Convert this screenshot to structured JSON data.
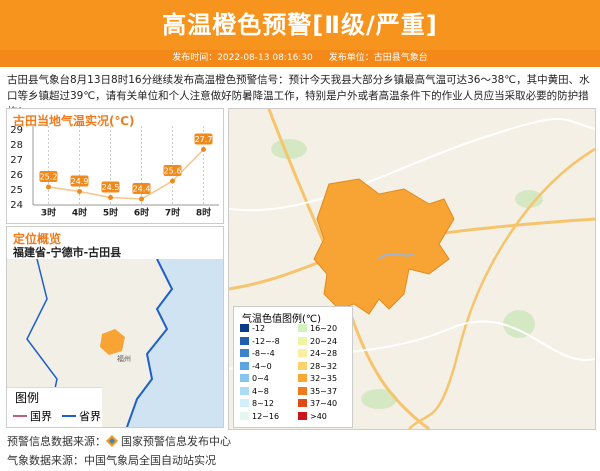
{
  "header": {
    "title": "高温橙色预警[Ⅱ级/严重]",
    "publish_time": "发布时间：2022-08-13 08:16:30",
    "publisher": "发布单位：古田县气象台"
  },
  "notice": "古田县气象台8月13日8时16分继续发布高温橙色预警信号：预计今天我县大部分乡镇最高气温可达36～38℃，其中黄田、水口等乡镇超过39℃，请有关单位和个人注意做好防暑降温工作，特别是户外或者高温条件下的作业人员应当采取必要的防护措施！",
  "chart_data": {
    "type": "line",
    "title": "古田当地气温实况(℃)",
    "categories": [
      "3时",
      "4时",
      "5时",
      "6时",
      "7时",
      "8时"
    ],
    "values": [
      25.2,
      24.9,
      24.5,
      24.4,
      25.6,
      27.7
    ],
    "color": "#f08a1c",
    "ylim": [
      24,
      29
    ],
    "yticks": [
      24,
      25,
      26,
      27,
      28,
      29
    ],
    "grid": true
  },
  "location": {
    "title": "定位概览",
    "place": "福建省-宁德市-古田县",
    "legend_title": "图例",
    "legend_items": [
      {
        "label": "国界",
        "color": "#c06080"
      },
      {
        "label": "省界",
        "color": "#1f5fc8"
      }
    ]
  },
  "map_legend": {
    "title": "气温色值图例(℃)",
    "items": [
      {
        "label": "-12",
        "color": "#0b3a88"
      },
      {
        "label": "-12~-8",
        "color": "#1f5fb0"
      },
      {
        "label": "-8~-4",
        "color": "#3c82cc"
      },
      {
        "label": "-4~0",
        "color": "#5ba6e0"
      },
      {
        "label": "0~4",
        "color": "#86c6ee"
      },
      {
        "label": "4~8",
        "color": "#acdcf4"
      },
      {
        "label": "8~12",
        "color": "#d2eefa"
      },
      {
        "label": "12~16",
        "color": "#e4f6ee"
      },
      {
        "label": "16~20",
        "color": "#d4efc0"
      },
      {
        "label": "20~24",
        "color": "#eef4a0"
      },
      {
        "label": "24~28",
        "color": "#fbeea0"
      },
      {
        "label": "28~32",
        "color": "#fbd36a"
      },
      {
        "label": "32~35",
        "color": "#f9a832"
      },
      {
        "label": "35~37",
        "color": "#f07b1c"
      },
      {
        "label": "37~40",
        "color": "#e04a14"
      },
      {
        "label": ">40",
        "color": "#c8161d"
      }
    ]
  },
  "footer": {
    "source_label": "预警信息数据来源：",
    "source_name": "国家预警信息发布中心",
    "weather_source": "气象数据来源：中国气象局全国自动站实况"
  }
}
